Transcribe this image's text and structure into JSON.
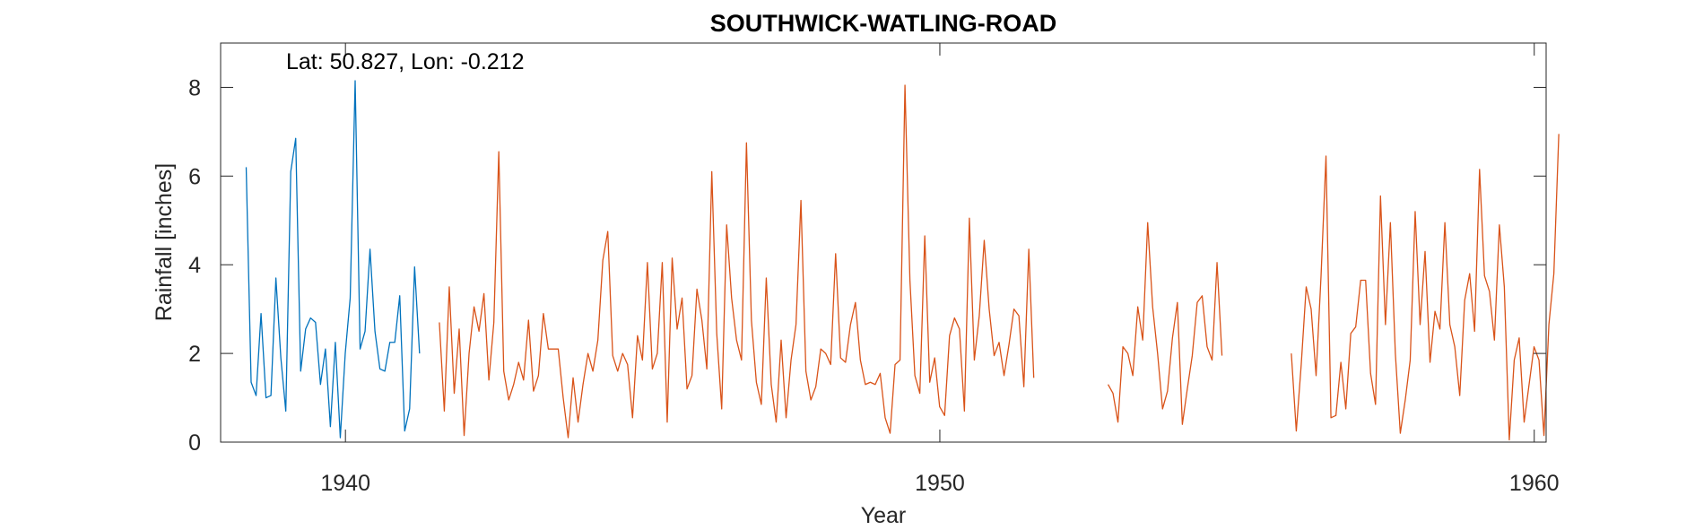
{
  "chart_data": {
    "type": "line",
    "title": "SOUTHWICK-WATLING-ROAD",
    "xlabel": "Year",
    "ylabel": "Rainfall [inches]",
    "annotation": "Lat: 50.827, Lon: -0.212",
    "xlim": [
      1937.9,
      1960.2
    ],
    "ylim": [
      0,
      9
    ],
    "xticks": [
      1940,
      1950,
      1960
    ],
    "yticks": [
      0,
      2,
      4,
      6,
      8
    ],
    "colors": {
      "series1": "#0072BD",
      "series2": "#D95319",
      "axis": "#262626"
    },
    "series": [
      {
        "name": "series1",
        "color": "#0072BD",
        "x_start": 1938.33,
        "step": 0.0833333,
        "values": [
          6.2,
          1.35,
          1.05,
          2.9,
          1.0,
          1.05,
          3.7,
          1.9,
          0.7,
          6.1,
          6.85,
          1.6,
          2.55,
          2.8,
          2.7,
          1.3,
          2.1,
          0.35,
          2.25,
          0.1,
          2.0,
          3.25,
          8.15,
          2.1,
          2.5,
          4.35,
          2.5,
          1.65,
          1.6,
          2.25,
          2.25,
          3.3,
          0.25,
          0.75,
          3.95,
          2.0
        ]
      },
      {
        "name": "series2",
        "color": "#D95319",
        "x_start": 1941.58,
        "step": 0.0833333,
        "values": [
          2.7,
          0.7,
          3.5,
          1.1,
          2.55,
          0.15,
          2.0,
          3.05,
          2.5,
          3.35,
          1.4,
          2.7,
          6.55,
          1.6,
          0.95,
          1.3,
          1.8,
          1.4,
          2.75,
          1.15,
          1.5,
          2.9,
          2.1,
          2.1,
          2.1,
          1.0,
          0.1,
          1.45,
          0.45,
          1.3,
          2.0,
          1.6,
          2.3,
          4.1,
          4.75,
          1.95,
          1.6,
          2.0,
          1.75,
          0.55,
          2.4,
          1.85,
          4.05,
          1.65,
          2.0,
          4.05,
          0.45,
          4.15,
          2.55,
          3.25,
          1.2,
          1.5,
          3.45,
          2.75,
          1.65,
          6.1,
          2.45,
          0.75,
          4.9,
          3.25,
          2.3,
          1.85,
          6.75,
          2.75,
          1.35,
          0.85,
          3.7,
          1.3,
          0.45,
          2.3,
          0.55,
          1.85,
          2.65,
          5.45,
          1.6,
          0.95,
          1.25,
          2.1,
          2.0,
          1.75,
          4.25,
          1.9,
          1.8,
          2.65,
          3.15,
          1.85,
          1.3,
          1.35,
          1.3,
          1.55,
          0.55,
          0.2,
          1.75,
          1.85,
          8.05,
          3.65,
          1.5,
          1.1,
          4.65,
          1.35,
          1.9,
          0.8,
          0.6,
          2.4,
          2.8,
          2.55,
          0.7,
          5.05,
          1.85,
          2.85,
          4.55,
          3.0,
          1.95,
          2.25,
          1.5,
          2.2,
          3.0,
          2.85,
          1.25,
          4.35,
          1.45,
          null,
          null,
          null,
          null,
          null,
          null,
          null,
          null,
          null,
          null,
          null,
          null,
          null,
          null,
          1.3,
          1.1,
          0.45,
          2.15,
          2.0,
          1.5,
          3.05,
          2.3,
          4.95,
          3.05,
          2.0,
          0.75,
          1.15,
          2.35,
          3.15,
          0.4,
          1.2,
          1.95,
          3.15,
          3.3,
          2.15,
          1.85,
          4.05,
          1.95,
          null,
          null,
          null,
          null,
          null,
          null,
          null,
          null,
          null,
          null,
          null,
          null,
          null,
          2.0,
          0.25,
          1.75,
          3.5,
          3.0,
          1.5,
          3.75,
          6.45,
          0.55,
          0.6,
          1.8,
          0.75,
          2.45,
          2.6,
          3.65,
          3.65,
          1.55,
          0.85,
          5.55,
          2.65,
          4.95,
          2.0,
          0.2,
          0.95,
          1.85,
          5.2,
          2.65,
          4.3,
          1.8,
          2.95,
          2.55,
          4.95,
          2.65,
          2.15,
          1.05,
          3.2,
          3.8,
          2.5,
          6.15,
          3.75,
          3.4,
          2.3,
          4.9,
          3.5,
          0.05,
          1.85,
          2.35,
          0.45,
          1.3,
          2.15,
          1.85,
          0.15,
          2.65,
          3.8,
          6.95
        ]
      }
    ]
  }
}
